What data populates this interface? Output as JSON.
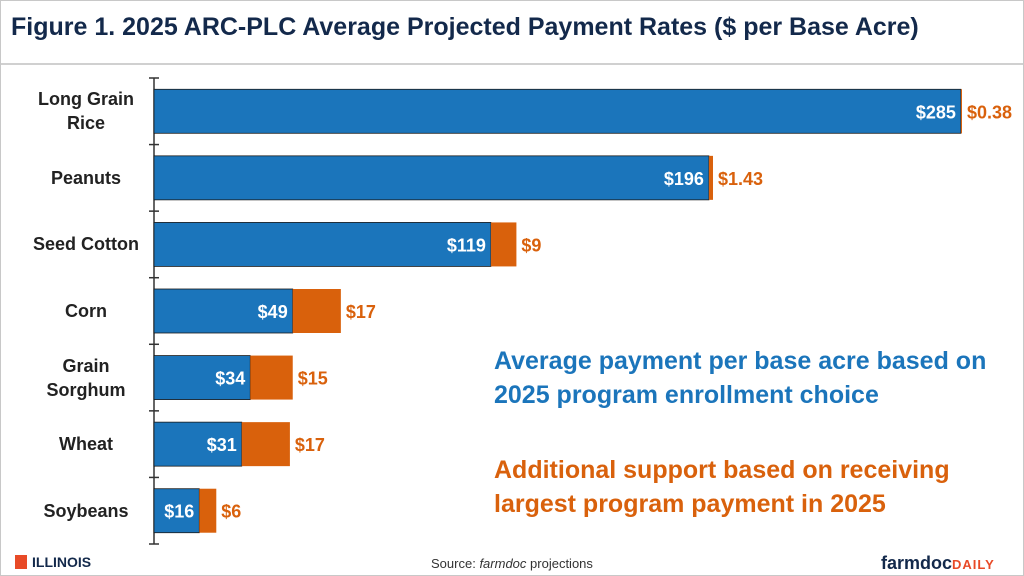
{
  "chart_data": {
    "type": "stacked-bar-horizontal",
    "title": "Figure 1. 2025 ARC-PLC Average Projected Payment Rates ($ per Base Acre)",
    "categories": [
      "Long Grain Rice",
      "Peanuts",
      "Seed Cotton",
      "Corn",
      "Grain Sorghum",
      "Wheat",
      "Soybeans"
    ],
    "series": [
      {
        "name": "Average payment per base acre based on 2025 program enrollment choice",
        "color": "#1b75bb",
        "values": [
          285,
          196,
          119,
          49,
          34,
          31,
          16
        ],
        "value_labels": [
          "$285",
          "$196",
          "$119",
          "$49",
          "$34",
          "$31",
          "$16"
        ]
      },
      {
        "name": "Additional support based on receiving largest program payment in 2025",
        "color": "#d9610c",
        "values": [
          0.38,
          1.43,
          9,
          17,
          15,
          17,
          6
        ],
        "value_labels": [
          "$0.38",
          "$1.43",
          "$9",
          "$17",
          "$15",
          "$17",
          "$6"
        ]
      }
    ]
  },
  "footer": {
    "brand": "ILLINOIS",
    "source_prefix": "Source:",
    "source_emph": "farmdoc",
    "source_suffix": "projections",
    "logo_main": "farmdoc",
    "logo_sub": "DAILY"
  }
}
